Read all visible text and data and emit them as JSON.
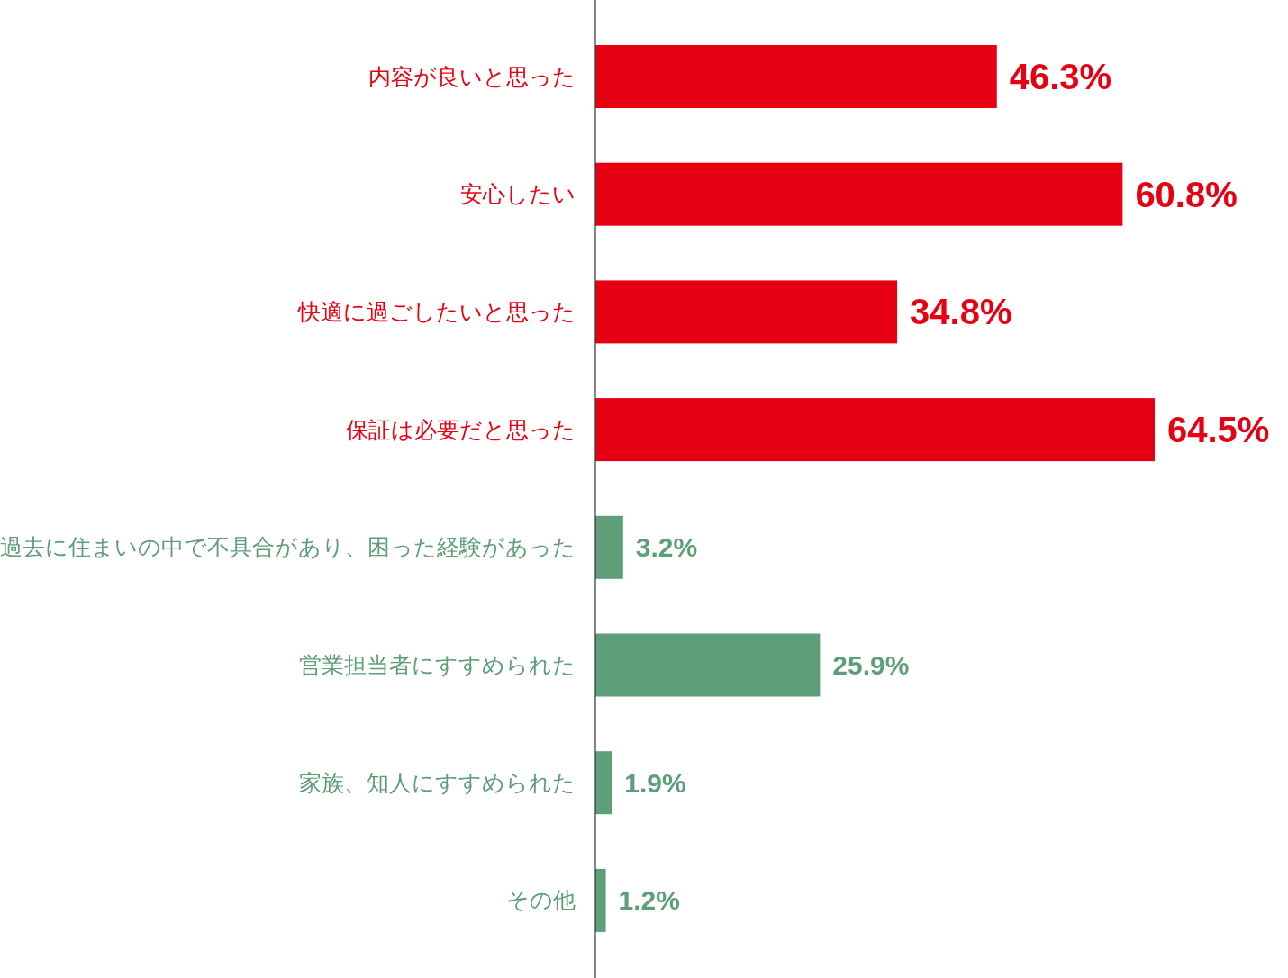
{
  "chart_data": {
    "type": "bar",
    "orientation": "horizontal",
    "categories": [
      "内容が良いと思った",
      "安心したい",
      "快適に過ごしたいと思った",
      "保証は必要だと思った",
      "過去に住まいの中で不具合があり、困った経験があった",
      "営業担当者にすすめられた",
      "家族、知人にすすめられた",
      "その他"
    ],
    "values": [
      46.3,
      60.8,
      34.8,
      64.5,
      3.2,
      25.9,
      1.9,
      1.2
    ],
    "colors": [
      "#e60012",
      "#e60012",
      "#e60012",
      "#e60012",
      "#5e9e78",
      "#5e9e78",
      "#5e9e78",
      "#5e9e78"
    ],
    "value_labels": [
      "46.3%",
      "60.8%",
      "34.8%",
      "64.5%",
      "3.2%",
      "25.9%",
      "1.9%",
      "1.2%"
    ]
  }
}
